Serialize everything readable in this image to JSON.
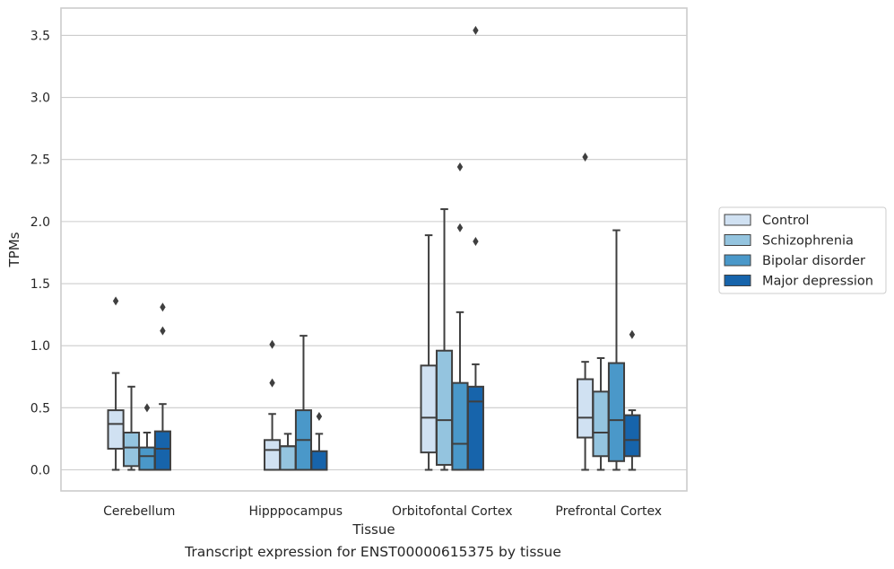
{
  "caption": "Transcript expression for ENST00000615375 by tissue",
  "chart_data": {
    "type": "box",
    "xlabel": "Tissue",
    "ylabel": "TPMs",
    "ylim": [
      -0.17,
      3.72
    ],
    "yticks": [
      0.0,
      0.5,
      1.0,
      1.5,
      2.0,
      2.5,
      3.0,
      3.5
    ],
    "grid": "horizontal",
    "legend_position": "right",
    "categories": [
      "Cerebellum",
      "Hipppocampus",
      "Orbitofontal Cortex",
      "Prefrontal Cortex"
    ],
    "series": [
      {
        "name": "Control",
        "color": "#d0e1f2",
        "boxes": [
          {
            "whisker_low": 0.0,
            "q1": 0.17,
            "median": 0.37,
            "q3": 0.48,
            "whisker_high": 0.78,
            "outliers": [
              1.36
            ]
          },
          {
            "whisker_low": 0.0,
            "q1": 0.0,
            "median": 0.16,
            "q3": 0.24,
            "whisker_high": 0.45,
            "outliers": [
              0.7,
              1.01
            ]
          },
          {
            "whisker_low": 0.0,
            "q1": 0.14,
            "median": 0.42,
            "q3": 0.84,
            "whisker_high": 1.89,
            "outliers": []
          },
          {
            "whisker_low": 0.0,
            "q1": 0.26,
            "median": 0.42,
            "q3": 0.73,
            "whisker_high": 0.87,
            "outliers": [
              2.52
            ]
          }
        ]
      },
      {
        "name": "Schizophrenia",
        "color": "#94c4df",
        "boxes": [
          {
            "whisker_low": 0.0,
            "q1": 0.03,
            "median": 0.18,
            "q3": 0.3,
            "whisker_high": 0.67,
            "outliers": []
          },
          {
            "whisker_low": 0.0,
            "q1": 0.0,
            "median": 0.19,
            "q3": 0.19,
            "whisker_high": 0.29,
            "outliers": []
          },
          {
            "whisker_low": 0.0,
            "q1": 0.04,
            "median": 0.4,
            "q3": 0.96,
            "whisker_high": 2.1,
            "outliers": []
          },
          {
            "whisker_low": 0.0,
            "q1": 0.11,
            "median": 0.3,
            "q3": 0.63,
            "whisker_high": 0.9,
            "outliers": []
          }
        ]
      },
      {
        "name": "Bipolar disorder",
        "color": "#4a98c9",
        "boxes": [
          {
            "whisker_low": 0.0,
            "q1": 0.0,
            "median": 0.11,
            "q3": 0.18,
            "whisker_high": 0.3,
            "outliers": [
              0.5
            ]
          },
          {
            "whisker_low": 0.0,
            "q1": 0.0,
            "median": 0.24,
            "q3": 0.48,
            "whisker_high": 1.08,
            "outliers": []
          },
          {
            "whisker_low": 0.0,
            "q1": 0.0,
            "median": 0.21,
            "q3": 0.7,
            "whisker_high": 1.27,
            "outliers": [
              1.95,
              2.44
            ]
          },
          {
            "whisker_low": 0.0,
            "q1": 0.07,
            "median": 0.4,
            "q3": 0.86,
            "whisker_high": 1.93,
            "outliers": []
          }
        ]
      },
      {
        "name": "Major depression",
        "color": "#1764ab",
        "boxes": [
          {
            "whisker_low": 0.0,
            "q1": 0.0,
            "median": 0.17,
            "q3": 0.31,
            "whisker_high": 0.53,
            "outliers": [
              1.12,
              1.31
            ]
          },
          {
            "whisker_low": 0.0,
            "q1": 0.0,
            "median": 0.0,
            "q3": 0.15,
            "whisker_high": 0.29,
            "outliers": [
              0.43
            ]
          },
          {
            "whisker_low": 0.0,
            "q1": 0.0,
            "median": 0.55,
            "q3": 0.67,
            "whisker_high": 0.85,
            "outliers": [
              1.84,
              3.54
            ]
          },
          {
            "whisker_low": 0.0,
            "q1": 0.11,
            "median": 0.24,
            "q3": 0.44,
            "whisker_high": 0.48,
            "outliers": [
              1.09
            ]
          }
        ]
      }
    ]
  }
}
